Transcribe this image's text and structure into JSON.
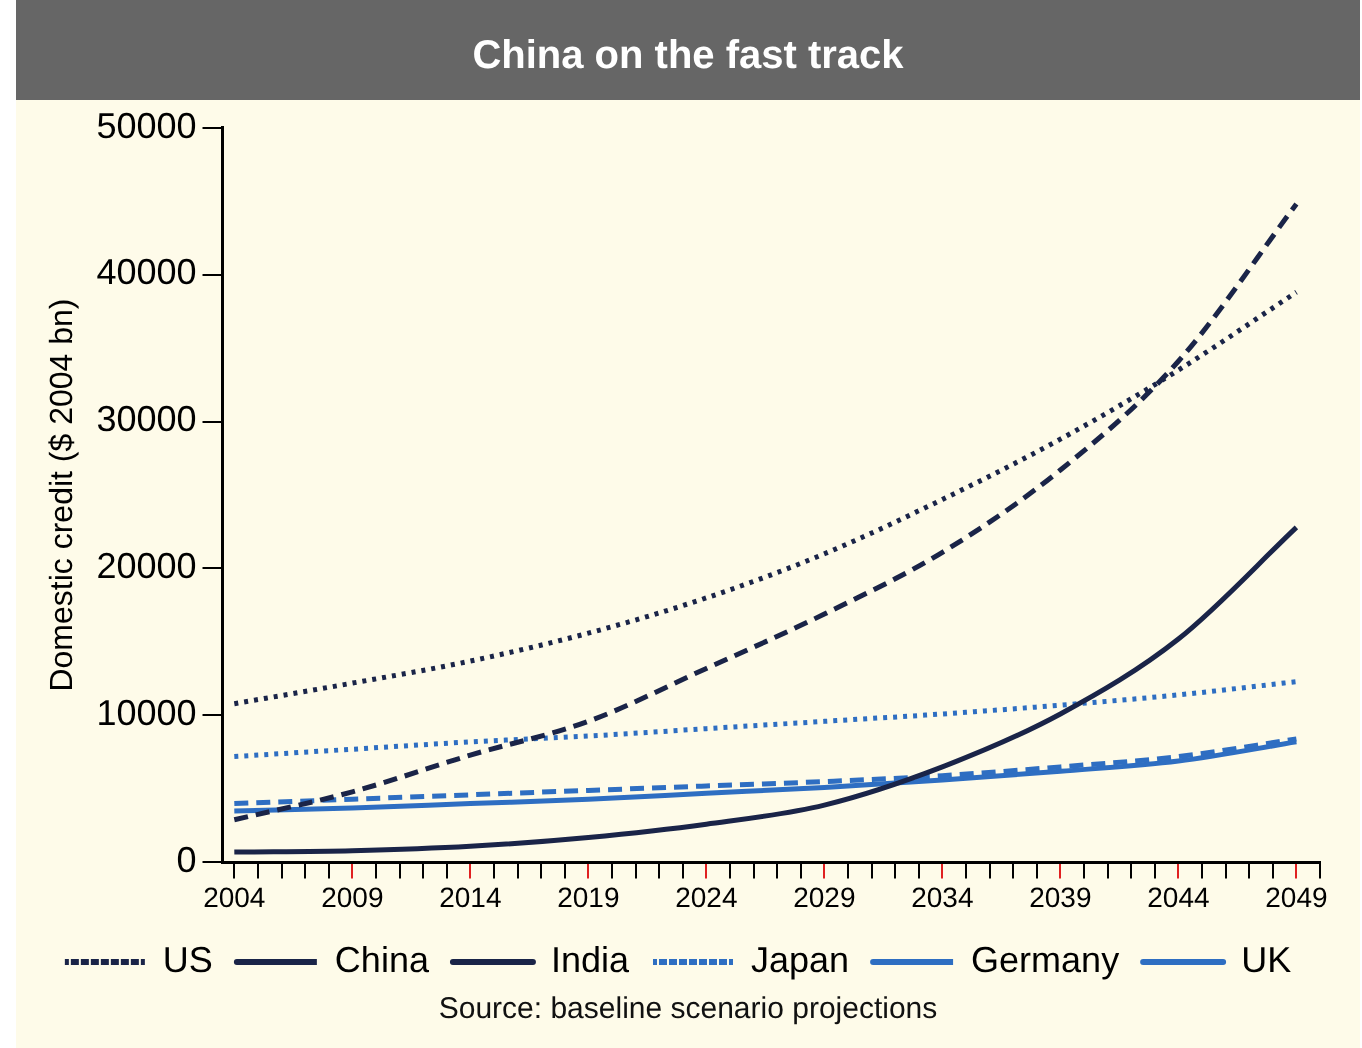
{
  "chart_data": {
    "type": "line",
    "title": "China on the fast track",
    "ylabel": "Domestic credit ($ 2004 bn)",
    "x": [
      2004,
      2009,
      2014,
      2019,
      2024,
      2029,
      2034,
      2039,
      2044,
      2049
    ],
    "xlim": [
      2003.5,
      2050
    ],
    "xticks": [
      2004,
      {
        "value": 2005,
        "label": null
      },
      {
        "value": 2006,
        "label": null
      },
      {
        "value": 2007,
        "label": null
      },
      {
        "value": 2008,
        "label": null
      },
      2009,
      {
        "value": 2010,
        "label": null
      },
      {
        "value": 2011,
        "label": null
      },
      {
        "value": 2012,
        "label": null
      },
      {
        "value": 2013,
        "label": null
      },
      2014,
      {
        "value": 2015,
        "label": null
      },
      {
        "value": 2016,
        "label": null
      },
      {
        "value": 2017,
        "label": null
      },
      {
        "value": 2018,
        "label": null
      },
      2019,
      {
        "value": 2020,
        "label": null
      },
      {
        "value": 2021,
        "label": null
      },
      {
        "value": 2022,
        "label": null
      },
      {
        "value": 2023,
        "label": null
      },
      2024,
      {
        "value": 2025,
        "label": null
      },
      {
        "value": 2026,
        "label": null
      },
      {
        "value": 2027,
        "label": null
      },
      {
        "value": 2028,
        "label": null
      },
      2029,
      {
        "value": 2030,
        "label": null
      },
      {
        "value": 2031,
        "label": null
      },
      {
        "value": 2032,
        "label": null
      },
      {
        "value": 2033,
        "label": null
      },
      2034,
      {
        "value": 2035,
        "label": null
      },
      {
        "value": 2036,
        "label": null
      },
      {
        "value": 2037,
        "label": null
      },
      {
        "value": 2038,
        "label": null
      },
      2039,
      {
        "value": 2040,
        "label": null
      },
      {
        "value": 2041,
        "label": null
      },
      {
        "value": 2042,
        "label": null
      },
      {
        "value": 2043,
        "label": null
      },
      2044,
      {
        "value": 2045,
        "label": null
      },
      {
        "value": 2046,
        "label": null
      },
      {
        "value": 2047,
        "label": null
      },
      {
        "value": 2048,
        "label": null
      },
      2049,
      {
        "value": 2050,
        "label": null
      }
    ],
    "ylim": [
      0,
      50000
    ],
    "yticks": [
      0,
      10000,
      20000,
      30000,
      40000,
      50000
    ],
    "series": [
      {
        "name": "US",
        "color": "#1a2448",
        "line_style": "dotted",
        "values": [
          10800,
          12200,
          13700,
          15600,
          18000,
          21000,
          24700,
          28800,
          33500,
          38800
        ]
      },
      {
        "name": "China",
        "color": "#1a2448",
        "line_style": "dashed",
        "values": [
          2900,
          4800,
          7300,
          9600,
          13200,
          16900,
          21100,
          26700,
          34100,
          44800
        ]
      },
      {
        "name": "India",
        "color": "#1a2448",
        "line_style": "solid",
        "values": [
          700,
          800,
          1100,
          1700,
          2600,
          3900,
          6500,
          10100,
          15200,
          22800
        ]
      },
      {
        "name": "Japan",
        "color": "#2e6ec2",
        "line_style": "dotted",
        "values": [
          7200,
          7700,
          8200,
          8600,
          9100,
          9600,
          10100,
          10700,
          11400,
          12300
        ]
      },
      {
        "name": "Germany",
        "color": "#2e6ec2",
        "line_style": "dashed",
        "values": [
          4000,
          4300,
          4600,
          4900,
          5200,
          5500,
          5900,
          6500,
          7200,
          8400
        ]
      },
      {
        "name": "UK",
        "color": "#2e6ec2",
        "line_style": "solid",
        "values": [
          3500,
          3700,
          4000,
          4300,
          4700,
          5100,
          5600,
          6200,
          6900,
          8200
        ]
      }
    ],
    "marker": "none",
    "grid": false,
    "legend": "bottom",
    "annotations": [
      "Source: baseline scenario projections"
    ]
  }
}
